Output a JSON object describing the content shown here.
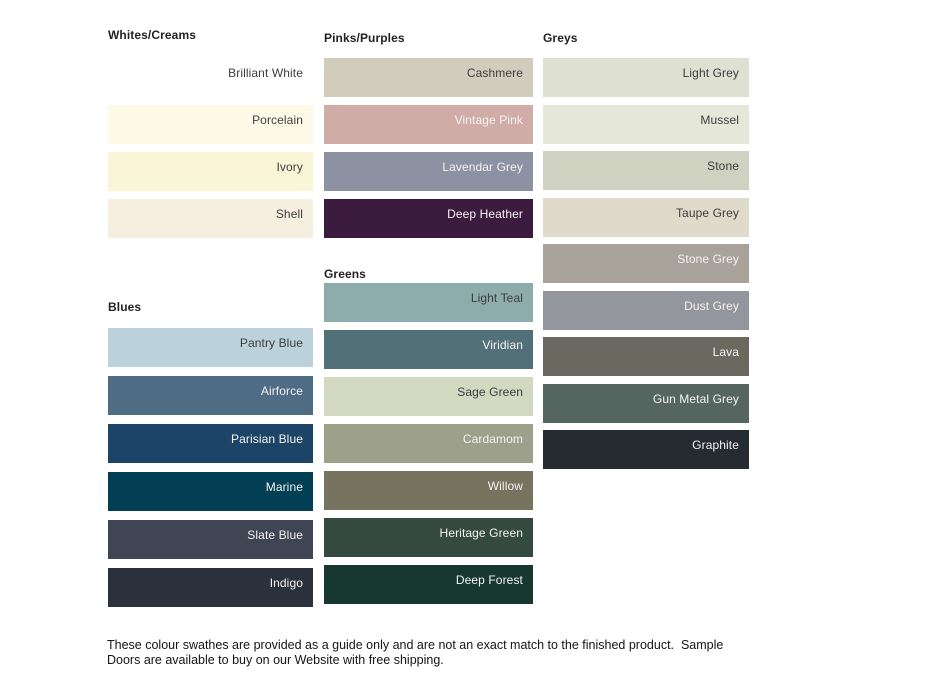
{
  "page": {
    "background": "#ffffff"
  },
  "sections": [
    {
      "id": "whites-creams",
      "title": "Whites/Creams",
      "swatches": [
        {
          "label": "Brilliant White",
          "color": "#ffffff",
          "text": "dark"
        },
        {
          "label": "Porcelain",
          "color": "#fdfae7",
          "text": "dark"
        },
        {
          "label": "Ivory",
          "color": "#fbf5d8",
          "text": "dark"
        },
        {
          "label": "Shell",
          "color": "#f6eedf",
          "text": "dark"
        }
      ]
    },
    {
      "id": "blues",
      "title": "Blues",
      "swatches": [
        {
          "label": "Pantry Blue",
          "color": "#bcd2da",
          "text": "dark"
        },
        {
          "label": "Airforce",
          "color": "#4e6c84",
          "text": "light"
        },
        {
          "label": "Parisian Blue",
          "color": "#1c4467",
          "text": "light"
        },
        {
          "label": "Marine",
          "color": "#023f54",
          "text": "light"
        },
        {
          "label": "Slate Blue",
          "color": "#3f4552",
          "text": "light"
        },
        {
          "label": "Indigo",
          "color": "#2a313c",
          "text": "light"
        }
      ]
    },
    {
      "id": "pinks-purples",
      "title": "Pinks/Purples",
      "swatches": [
        {
          "label": "Cashmere",
          "color": "#d2ccbc",
          "text": "dark"
        },
        {
          "label": "Vintage Pink",
          "color": "#d0aca6",
          "text": "light"
        },
        {
          "label": "Lavendar Grey",
          "color": "#8d92a3",
          "text": "light"
        },
        {
          "label": "Deep Heather",
          "color": "#3b1c3e",
          "text": "light"
        }
      ]
    },
    {
      "id": "greens",
      "title": "Greens",
      "swatches": [
        {
          "label": "Light Teal",
          "color": "#8facad",
          "text": "dark"
        },
        {
          "label": "Viridian",
          "color": "#527077",
          "text": "light"
        },
        {
          "label": "Sage Green",
          "color": "#d3d8c1",
          "text": "dark"
        },
        {
          "label": "Cardamom",
          "color": "#9da189",
          "text": "light"
        },
        {
          "label": "Willow",
          "color": "#76735f",
          "text": "light"
        },
        {
          "label": "Heritage Green",
          "color": "#344a40",
          "text": "light"
        },
        {
          "label": "Deep Forest",
          "color": "#17382f",
          "text": "light"
        }
      ]
    },
    {
      "id": "greys",
      "title": "Greys",
      "swatches": [
        {
          "label": "Light Grey",
          "color": "#dee0d2",
          "text": "dark"
        },
        {
          "label": "Mussel",
          "color": "#e5e7d9",
          "text": "dark"
        },
        {
          "label": "Stone",
          "color": "#cfd2c0",
          "text": "dark"
        },
        {
          "label": "Taupe Grey",
          "color": "#e0dacb",
          "text": "dark"
        },
        {
          "label": "Stone Grey",
          "color": "#a8a29a",
          "text": "light"
        },
        {
          "label": "Dust Grey",
          "color": "#94969d",
          "text": "light"
        },
        {
          "label": "Lava",
          "color": "#6a685f",
          "text": "light"
        },
        {
          "label": "Gun Metal Grey",
          "color": "#556560",
          "text": "light"
        },
        {
          "label": "Graphite",
          "color": "#262b31",
          "text": "light"
        }
      ]
    }
  ],
  "footer": {
    "line1": "These colour swathes are provided as a guide only and are not an exact match to the finished product.  Sample",
    "line2": "Doors are available to buy on our Website with free shipping."
  }
}
